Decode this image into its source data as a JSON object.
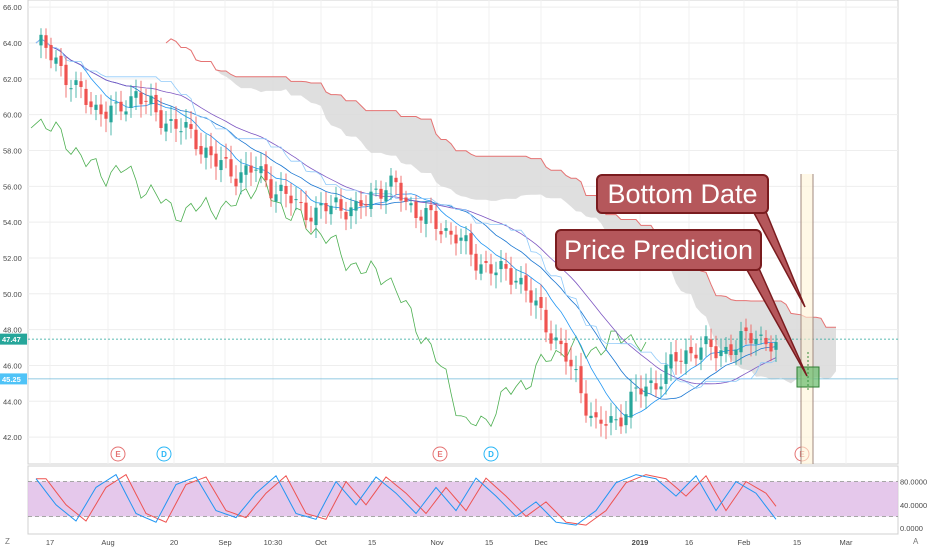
{
  "chart_data": [
    {
      "type": "candlestick",
      "title": "",
      "ylim": [
        40.5,
        66.4
      ],
      "y_ticks": [
        "66.00",
        "64.00",
        "62.00",
        "60.00",
        "58.00",
        "56.00",
        "54.00",
        "52.00",
        "50.00",
        "48.00",
        "46.00",
        "44.00",
        "42.00"
      ],
      "x_ticks": [
        "17",
        "Aug",
        "20",
        "Sep",
        "10:30",
        "Oct",
        "15",
        "Nov",
        "15",
        "Dec",
        "2019",
        "16",
        "Feb",
        "15",
        "Mar"
      ],
      "price_labels": {
        "high": "47.47",
        "low": "45.25",
        "high_value": 47.47,
        "low_value": 45.25
      },
      "events": [
        {
          "label": "E",
          "kind": "earnings"
        },
        {
          "label": "D",
          "kind": "dividend"
        },
        {
          "label": "E",
          "kind": "earnings"
        },
        {
          "label": "D",
          "kind": "dividend"
        },
        {
          "label": "E",
          "kind": "earnings"
        }
      ],
      "close_path": [
        [
          0,
          64.0
        ],
        [
          4,
          63.1
        ],
        [
          8,
          61.3
        ],
        [
          12,
          60.4
        ],
        [
          16,
          60.0
        ],
        [
          20,
          61.3
        ],
        [
          24,
          60.0
        ],
        [
          28,
          59.4
        ],
        [
          32,
          58.6
        ],
        [
          36,
          57.3
        ],
        [
          40,
          56.7
        ],
        [
          44,
          56.9
        ],
        [
          48,
          55.8
        ],
        [
          52,
          55.0
        ],
        [
          56,
          54.4
        ],
        [
          60,
          55.1
        ],
        [
          64,
          54.5
        ],
        [
          68,
          55.9
        ],
        [
          72,
          55.9
        ],
        [
          76,
          54.6
        ],
        [
          80,
          53.9
        ],
        [
          84,
          53.2
        ],
        [
          88,
          51.9
        ],
        [
          92,
          51.2
        ],
        [
          96,
          51.1
        ],
        [
          100,
          49.2
        ],
        [
          104,
          47.4
        ],
        [
          108,
          45.3
        ],
        [
          112,
          42.6
        ],
        [
          116,
          42.9
        ],
        [
          120,
          44.4
        ],
        [
          124,
          45.1
        ],
        [
          128,
          46.3
        ],
        [
          132,
          47.0
        ],
        [
          136,
          46.8
        ],
        [
          140,
          47.1
        ],
        [
          144,
          47.8
        ],
        [
          148,
          46.9
        ]
      ],
      "annotations": [
        {
          "text": "Bottom Date"
        },
        {
          "text": "Price Prediction"
        }
      ],
      "colors": {
        "up": "#26a69a",
        "down": "#ef5350",
        "cloud": "#d9d9d9",
        "lagging": "#4caf50",
        "lead_red": "#e57373",
        "ma_blue": "#2196f3",
        "callout": "#b5575b",
        "callout_border": "#7a1c1f"
      }
    },
    {
      "type": "line",
      "title": "",
      "ylim": [
        0,
        100
      ],
      "y_ticks": [
        "80.0000",
        "40.0000",
        "0.0000"
      ],
      "band": [
        20,
        80
      ],
      "k_path": [
        [
          0,
          85
        ],
        [
          4,
          40
        ],
        [
          8,
          12
        ],
        [
          12,
          70
        ],
        [
          16,
          92
        ],
        [
          20,
          25
        ],
        [
          24,
          10
        ],
        [
          28,
          75
        ],
        [
          32,
          88
        ],
        [
          36,
          30
        ],
        [
          40,
          18
        ],
        [
          44,
          60
        ],
        [
          48,
          90
        ],
        [
          52,
          25
        ],
        [
          56,
          15
        ],
        [
          60,
          80
        ],
        [
          64,
          40
        ],
        [
          68,
          88
        ],
        [
          72,
          60
        ],
        [
          76,
          25
        ],
        [
          80,
          70
        ],
        [
          84,
          30
        ],
        [
          88,
          86
        ],
        [
          92,
          55
        ],
        [
          96,
          20
        ],
        [
          100,
          45
        ],
        [
          104,
          10
        ],
        [
          108,
          5
        ],
        [
          112,
          30
        ],
        [
          116,
          78
        ],
        [
          120,
          92
        ],
        [
          124,
          85
        ],
        [
          128,
          55
        ],
        [
          132,
          90
        ],
        [
          136,
          30
        ],
        [
          140,
          80
        ],
        [
          144,
          60
        ],
        [
          148,
          15
        ]
      ]
    }
  ],
  "corner_labels": {
    "left": "Z",
    "right": "A"
  }
}
